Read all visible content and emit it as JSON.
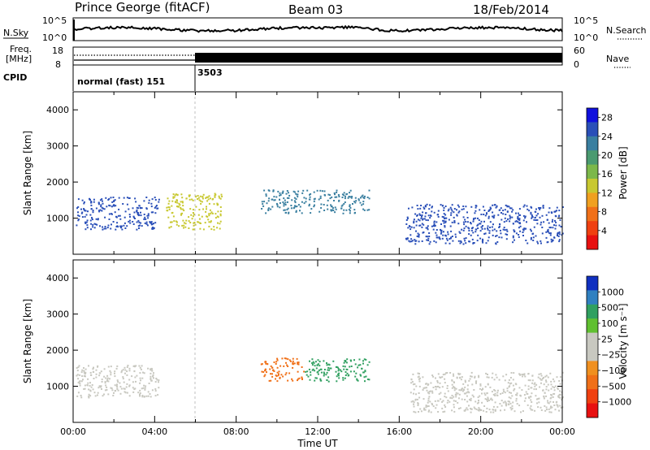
{
  "header": {
    "station": "Prince George (fitACF)",
    "beam": "Beam 03",
    "date": "18/Feb/2014"
  },
  "noise_panel": {
    "left_label": "N.Sky",
    "right_label": "N.Search",
    "left_ticks": [
      "10^5",
      "10^0"
    ],
    "right_ticks": [
      "10^5",
      "10^0"
    ]
  },
  "freq_panel": {
    "left_label_1": "Freq.",
    "left_label_2": "[MHz]",
    "right_label": "Nave",
    "left_ticks": [
      "18",
      "8"
    ],
    "right_ticks": [
      "60",
      "0"
    ]
  },
  "cpid_panel": {
    "label": "CPID",
    "segments": [
      {
        "name": "normal (fast) 151",
        "start_hour": 0,
        "end_hour": 6
      },
      {
        "name": "3503",
        "start_hour": 6,
        "end_hour": 24
      }
    ]
  },
  "chart_data": [
    {
      "type": "heatmap",
      "quantity": "Power",
      "xlabel": "",
      "ylabel": "Slant Range [km]",
      "xlim": [
        0,
        24
      ],
      "ylim": [
        0,
        4500
      ],
      "yticks": [
        1000,
        2000,
        3000,
        4000
      ],
      "colorbar": {
        "label": "Power [dB]",
        "ticks": [
          4,
          8,
          12,
          16,
          20,
          24,
          28
        ],
        "range": [
          0,
          30
        ],
        "colors": [
          "#1010dd",
          "#2a4fb8",
          "#3a7fa0",
          "#4a9a70",
          "#7cb84a",
          "#c8c830",
          "#f0a020",
          "#f07018",
          "#f04010",
          "#e81010"
        ]
      },
      "features": [
        {
          "start_hour": 0.1,
          "end_hour": 4.2,
          "range_km": [
            700,
            1600
          ],
          "level_db": 26
        },
        {
          "start_hour": 4.5,
          "end_hour": 7.3,
          "range_km": [
            700,
            1700
          ],
          "level_db": 14
        },
        {
          "start_hour": 9.2,
          "end_hour": 14.5,
          "range_km": [
            1150,
            1800
          ],
          "level_db": 22
        },
        {
          "start_hour": 16.3,
          "end_hour": 24,
          "range_km": [
            300,
            1400
          ],
          "level_db": 26
        }
      ]
    },
    {
      "type": "heatmap",
      "quantity": "Velocity",
      "xlabel": "Time UT",
      "ylabel": "Slant Range [km]",
      "xlim": [
        0,
        24
      ],
      "xticks": [
        "00:00",
        "04:00",
        "08:00",
        "12:00",
        "16:00",
        "20:00",
        "00:00"
      ],
      "ylim": [
        0,
        4500
      ],
      "yticks": [
        1000,
        2000,
        3000,
        4000
      ],
      "colorbar": {
        "label": "Velocity [m s⁻¹]",
        "ticks": [
          "1000",
          "500",
          "100",
          "25",
          "−25",
          "−100",
          "−500",
          "−1000"
        ],
        "colors": [
          "#1030c0",
          "#3080c0",
          "#30a060",
          "#60c030",
          "#c8c8c0",
          "#c8c8c0",
          "#f09020",
          "#f07018",
          "#f04010",
          "#e81010"
        ]
      },
      "features": [
        {
          "start_hour": 0.1,
          "end_hour": 4.2,
          "range_km": [
            700,
            1600
          ],
          "velocity_ms": 0
        },
        {
          "start_hour": 9.2,
          "end_hour": 11.3,
          "range_km": [
            1150,
            1800
          ],
          "velocity_ms": -150
        },
        {
          "start_hour": 11.3,
          "end_hour": 14.5,
          "range_km": [
            1150,
            1800
          ],
          "velocity_ms": 120
        },
        {
          "start_hour": 16.5,
          "end_hour": 24,
          "range_km": [
            300,
            1400
          ],
          "velocity_ms": 0
        }
      ]
    }
  ]
}
